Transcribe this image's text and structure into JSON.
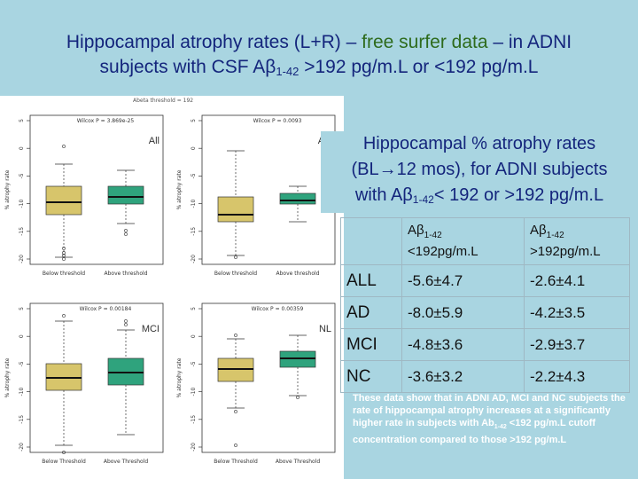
{
  "title": {
    "line1_pre": "Hippocampal atrophy rates (L+R) – ",
    "line1_hl": "free surfer data",
    "line1_post": " – in ADNI",
    "line2_pre": "subjects with CSF A",
    "beta": "β",
    "sub": "1-42",
    "line2_post": " >192 pg/m.L or <192 pg/m.L"
  },
  "figure": {
    "top_label": "Abeta threshold = 192",
    "panels": [
      {
        "group": "All",
        "pvalue": "Wilcox P = 3.869e-25",
        "x_labels": [
          "Below threshold",
          "Above threshold"
        ],
        "y_label": "% atrophy rate"
      },
      {
        "group": "AD",
        "pvalue": "Wilcox P = 0.0093",
        "x_labels": [
          "Below threshold",
          "Above threshold"
        ],
        "y_label": "% atrophy rate"
      },
      {
        "group": "MCI",
        "pvalue": "Wilcox P = 0.00184",
        "x_labels": [
          "Below Threshold",
          "Above Threshold"
        ],
        "y_label": "% atrophy rate"
      },
      {
        "group": "NL",
        "pvalue": "Wilcox P = 0.00359",
        "x_labels": [
          "Below Threshold",
          "Above Threshold"
        ],
        "y_label": "% atrophy rate"
      }
    ],
    "tick_labels": [
      "5",
      "0",
      "-5",
      "-10",
      "-15",
      "-20"
    ],
    "colors": {
      "below": "#d7c56b",
      "above": "#2fa37d"
    }
  },
  "subhead": {
    "line1": "Hippocampal % atrophy rates",
    "line2": "(BL→12 mos), for ADNI subjects",
    "line3_pre": "with A",
    "beta": "β",
    "sub": "1-42",
    "line3_post": "< 192 or >192 pg/m.L"
  },
  "table": {
    "header": [
      {
        "pre": "A",
        "beta": "β",
        "sub": "1-42",
        "post": "<192pg/m.L"
      },
      {
        "pre": "A",
        "beta": "β",
        "sub": "1-42",
        "post": ">192pg/m.L"
      }
    ],
    "rows": [
      {
        "label": "ALL",
        "below": "-5.6±4.7",
        "above": "-2.6±4.1"
      },
      {
        "label": "AD",
        "below": "-8.0±5.9",
        "above": "-4.2±3.5"
      },
      {
        "label": "MCI",
        "below": "-4.8±3.6",
        "above": "-2.9±3.7"
      },
      {
        "label": "NC",
        "below": "-3.6±3.2",
        "above": "-2.2±4.3"
      }
    ]
  },
  "note": {
    "pre": "These data show that in ADNI AD, MCI and NC subjects the rate of hippocampal atrophy increases at a significantly higher rate in subjects with Ab",
    "sub": "1-42",
    "post": " <192 pg/m.L cutoff concentration compared to those >192 pg/m.L"
  }
}
